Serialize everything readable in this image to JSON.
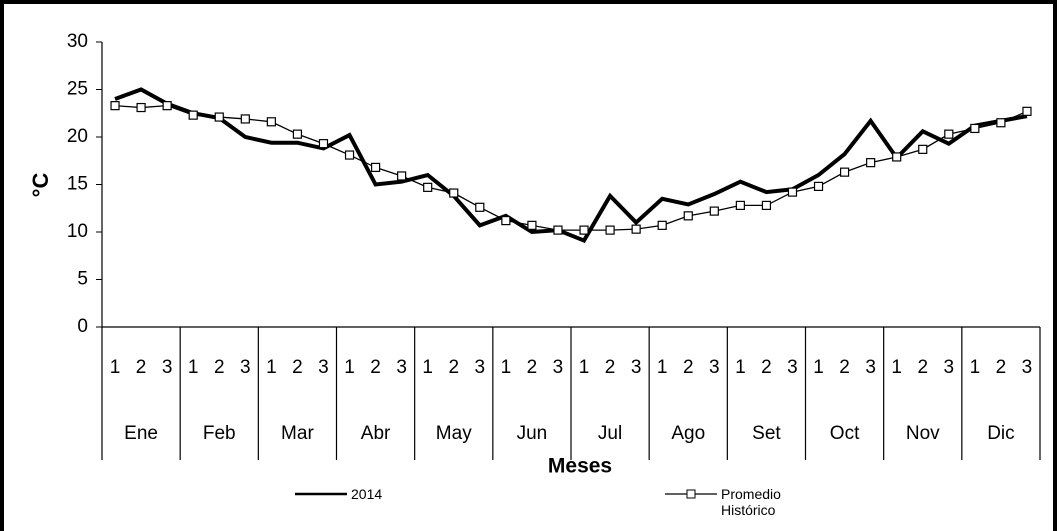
{
  "chart_data": {
    "type": "line",
    "y_label": "°C",
    "x_label": "Meses",
    "categories": [
      "1",
      "2",
      "3",
      "1",
      "2",
      "3",
      "1",
      "2",
      "3",
      "1",
      "2",
      "3",
      "1",
      "2",
      "3",
      "1",
      "2",
      "3",
      "1",
      "2",
      "3",
      "1",
      "2",
      "3",
      "1",
      "2",
      "3",
      "1",
      "2",
      "3",
      "1",
      "2",
      "3",
      "1",
      "2",
      "3"
    ],
    "category_groups": [
      "Ene",
      "Feb",
      "Mar",
      "Abr",
      "May",
      "Jun",
      "Jul",
      "Ago",
      "Set",
      "Oct",
      "Nov",
      "Dic"
    ],
    "series": [
      {
        "name": "2014",
        "color": "#000000",
        "marker": "none",
        "values": [
          24,
          25,
          23.5,
          22.5,
          22,
          20,
          19.4,
          19.4,
          18.8,
          20.2,
          15,
          15.3,
          16,
          13.8,
          10.7,
          11.7,
          10,
          10.2,
          9.1,
          13.8,
          11,
          13.5,
          12.9,
          14,
          15.3,
          14.2,
          14.5,
          16,
          18.2,
          21.7,
          17.8,
          20.6,
          19.3,
          21.2,
          21.7,
          22.2
        ]
      },
      {
        "name": "Promedio Histórico",
        "color": "#000000",
        "marker": "square",
        "values": [
          23.3,
          23.1,
          23.3,
          22.3,
          22.1,
          21.9,
          21.6,
          20.3,
          19.3,
          18.1,
          16.8,
          15.9,
          14.7,
          14.1,
          12.6,
          11.2,
          10.7,
          10.2,
          10.2,
          10.2,
          10.3,
          10.7,
          11.7,
          12.2,
          12.8,
          12.8,
          14.2,
          14.8,
          16.3,
          17.3,
          17.9,
          18.7,
          20.3,
          20.9,
          21.5,
          22.7
        ]
      }
    ],
    "ylim": [
      0,
      30
    ],
    "yticks": [
      0,
      5,
      10,
      15,
      20,
      25,
      30
    ],
    "grid": false
  }
}
